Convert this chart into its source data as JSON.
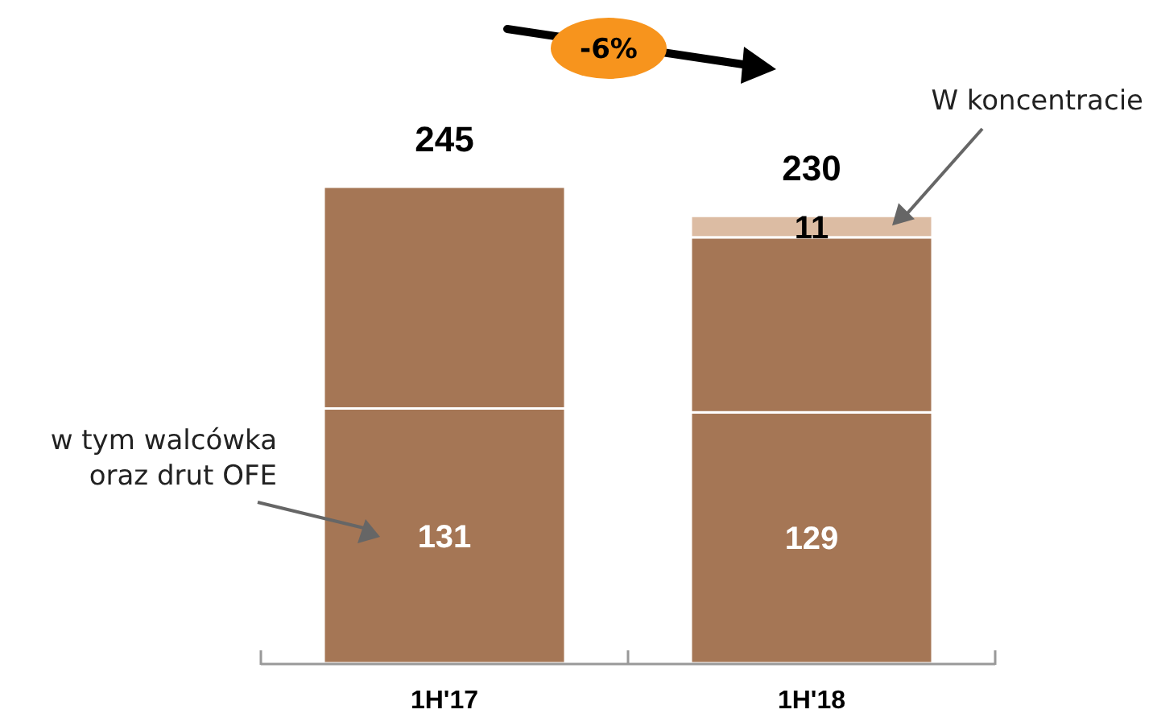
{
  "chart_data": {
    "type": "bar",
    "stacked": true,
    "categories": [
      "1H'17",
      "1H'18"
    ],
    "series": [
      {
        "color": "#a57655",
        "values": [
          131,
          129
        ],
        "value_labels": [
          "131",
          "129"
        ]
      },
      {
        "color": "#a57655",
        "values": [
          114,
          90
        ],
        "value_labels": [
          null,
          null
        ]
      },
      {
        "color": "#dcbca3",
        "values": [
          null,
          11
        ],
        "value_labels": [
          null,
          "11"
        ]
      }
    ],
    "totals": [
      "245",
      "230"
    ],
    "annotations": [
      "-6%",
      "W koncentracie",
      "w tym walcówka oraz drut OFE"
    ]
  }
}
